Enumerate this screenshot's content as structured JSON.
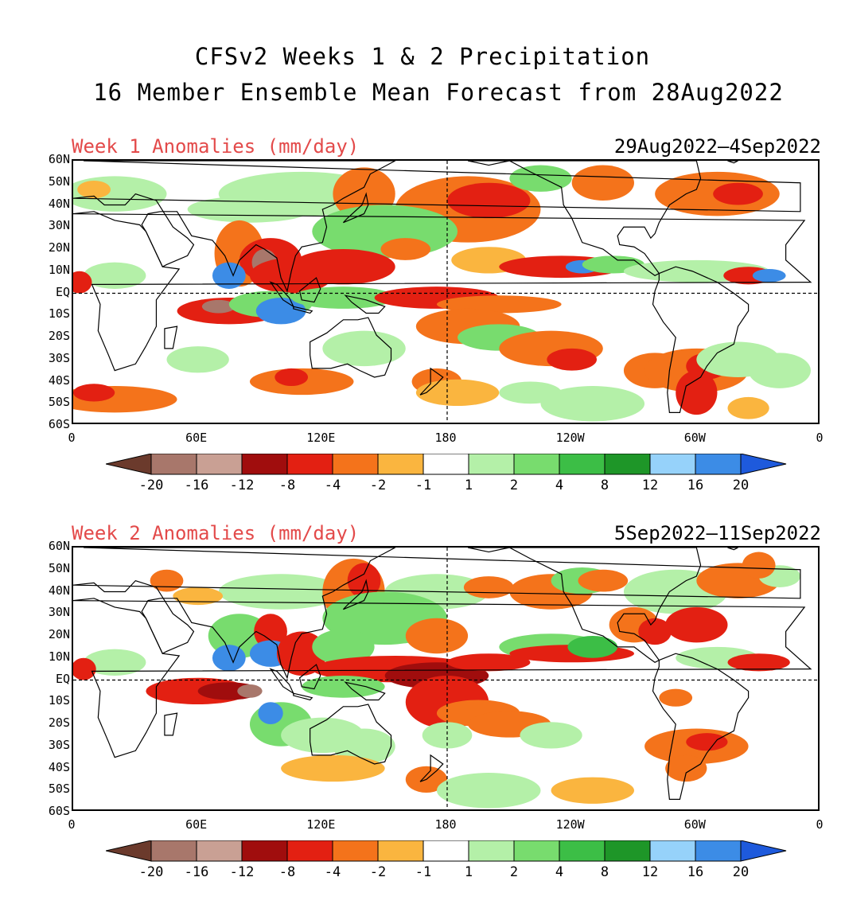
{
  "title_line1": "CFSv2 Weeks 1 & 2 Precipitation",
  "title_line2": "16 Member Ensemble Mean Forecast from 28Aug2022",
  "panels": [
    {
      "title": "Week 1 Anomalies (mm/day)",
      "dates": "29Aug2022—4Sep2022"
    },
    {
      "title": "Week 2 Anomalies (mm/day)",
      "dates": "5Sep2022—11Sep2022"
    }
  ],
  "lat_labels": [
    "60N",
    "50N",
    "40N",
    "30N",
    "20N",
    "10N",
    "EQ",
    "10S",
    "20S",
    "30S",
    "40S",
    "50S",
    "60S"
  ],
  "lon_labels": [
    "0",
    "60E",
    "120E",
    "180",
    "120W",
    "60W",
    "0"
  ],
  "colorbar": {
    "labels": [
      "-20",
      "-16",
      "-12",
      "-8",
      "-4",
      "-2",
      "-1",
      "1",
      "2",
      "4",
      "8",
      "12",
      "16",
      "20"
    ],
    "colors": [
      "#6b3a2c",
      "#a8776b",
      "#c9a094",
      "#a00d0d",
      "#e32012",
      "#f4731b",
      "#fab53f",
      "#ffffff",
      "#b4f0a8",
      "#78dc6e",
      "#3cbe46",
      "#1e9628",
      "#96d2fa",
      "#3c8ce6",
      "#1e5adc"
    ]
  }
}
